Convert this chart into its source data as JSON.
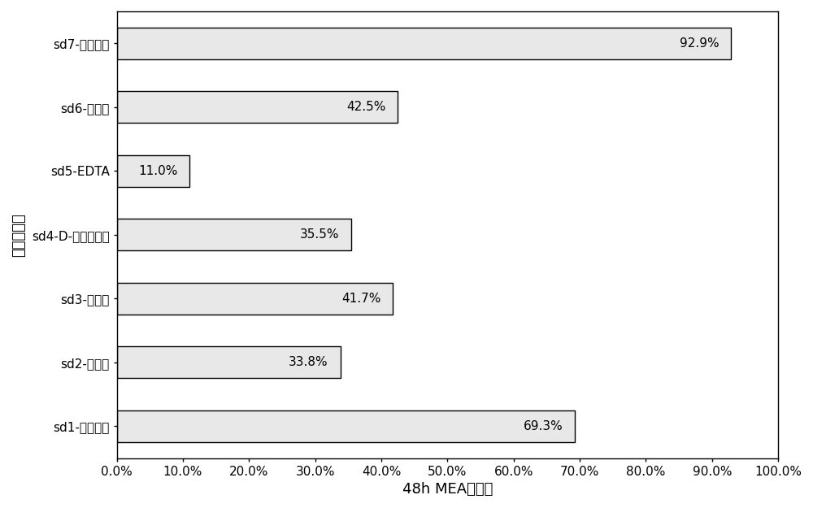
{
  "categories": [
    "sd1-无添加剂",
    "sd2-丁酮肌",
    "sd3-丙酮肌",
    "sd4-D-异抗坏血酸",
    "sd5-EDTA",
    "sd6-碳酰肜",
    "sd7-赤藓糖醇"
  ],
  "values": [
    69.3,
    33.8,
    41.7,
    35.5,
    11.0,
    42.5,
    92.9
  ],
  "bar_color": "#e8e8e8",
  "bar_edgecolor": "#000000",
  "xlabel": "48h MEA存留率",
  "ylabel": "添加剂种类",
  "xlim": [
    0,
    100
  ],
  "xtick_values": [
    0,
    10,
    20,
    30,
    40,
    50,
    60,
    70,
    80,
    90,
    100
  ],
  "xtick_labels": [
    "0.0%",
    "10.0%",
    "20.0%",
    "30.0%",
    "40.0%",
    "50.0%",
    "60.0%",
    "70.0%",
    "80.0%",
    "90.0%",
    "100.0%"
  ],
  "bar_height": 0.5,
  "label_fontsize": 13,
  "tick_fontsize": 11,
  "annotation_fontsize": 11,
  "background_color": "#ffffff"
}
